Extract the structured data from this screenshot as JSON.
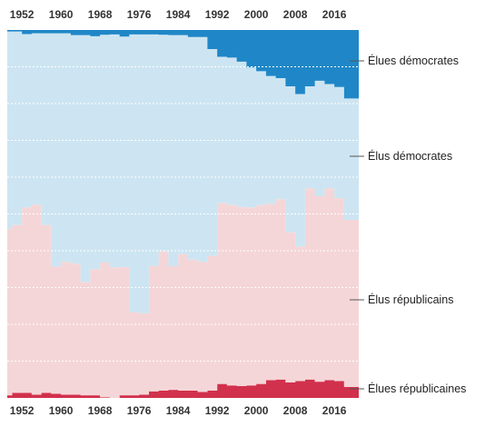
{
  "chart_data": {
    "type": "area",
    "stacking": "percent",
    "grid": true,
    "x": [
      1949,
      1951,
      1953,
      1955,
      1957,
      1959,
      1961,
      1963,
      1965,
      1967,
      1969,
      1971,
      1973,
      1975,
      1977,
      1979,
      1981,
      1983,
      1985,
      1987,
      1989,
      1991,
      1993,
      1995,
      1997,
      1999,
      2001,
      2003,
      2005,
      2007,
      2009,
      2011,
      2013,
      2015,
      2017,
      2019
    ],
    "xlim": [
      1949,
      2021
    ],
    "xticks": [
      "1952",
      "1960",
      "1968",
      "1976",
      "1984",
      "1992",
      "2000",
      "2008",
      "2016"
    ],
    "ylim": [
      0,
      100
    ],
    "series": [
      {
        "name": "Élues républicaines",
        "color": "#d1314d",
        "values": [
          0.7,
          1.4,
          1.4,
          0.9,
          1.4,
          1.1,
          0.9,
          0.9,
          0.7,
          0.7,
          0.2,
          0.0,
          0.7,
          0.7,
          0.9,
          1.8,
          2.0,
          2.2,
          2.0,
          2.0,
          1.6,
          2.0,
          3.8,
          3.4,
          3.2,
          3.4,
          3.8,
          4.8,
          5.0,
          4.2,
          4.6,
          5.0,
          4.4,
          4.8,
          4.6,
          3.0
        ]
      },
      {
        "name": "Élus républicains",
        "color": "#f5d6d8",
        "values": [
          45.3,
          45.6,
          50.4,
          51.6,
          45.6,
          34.6,
          36.1,
          35.6,
          30.8,
          34.3,
          36.6,
          35.5,
          34.9,
          22.6,
          22.1,
          34.1,
          37.8,
          33.6,
          37.1,
          35.6,
          35.4,
          36.6,
          49.2,
          49.1,
          48.7,
          48.4,
          48.6,
          48.0,
          49.0,
          40.8,
          36.6,
          52.0,
          50.4,
          52.2,
          49.7,
          45.4
        ]
      },
      {
        "name": "Élus démocrates",
        "color": "#cde5f2",
        "values": [
          53.6,
          52.6,
          47.1,
          46.6,
          52.1,
          63.4,
          62.1,
          62.1,
          67.1,
          63.3,
          61.9,
          63.3,
          62.6,
          75.5,
          75.8,
          62.9,
          58.9,
          62.8,
          59.5,
          60.5,
          61.1,
          56.2,
          39.7,
          40.0,
          39.5,
          38.0,
          36.4,
          34.7,
          32.9,
          39.7,
          41.4,
          27.7,
          31.4,
          28.3,
          30.2,
          33.0
        ]
      },
      {
        "name": "Élues démocrates",
        "color": "#1f87c7",
        "values": [
          0.4,
          0.4,
          1.1,
          0.9,
          0.9,
          0.9,
          0.9,
          1.4,
          1.4,
          1.7,
          1.3,
          1.2,
          1.8,
          1.2,
          1.2,
          1.2,
          1.3,
          1.4,
          1.4,
          1.9,
          1.9,
          5.2,
          7.3,
          7.5,
          8.6,
          10.2,
          11.2,
          12.5,
          13.1,
          15.3,
          17.4,
          15.3,
          13.8,
          14.7,
          15.5,
          18.6
        ]
      }
    ]
  }
}
